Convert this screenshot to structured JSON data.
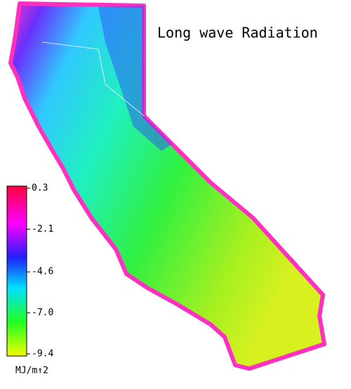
{
  "title": "Long wave Radiation",
  "colorbar": {
    "ticks": [
      0.3,
      -2.1,
      -4.6,
      {
        "value": -7,
        "label": "-7.0"
      },
      -9.4
    ],
    "unit": "MJ/m↑2"
  }
}
